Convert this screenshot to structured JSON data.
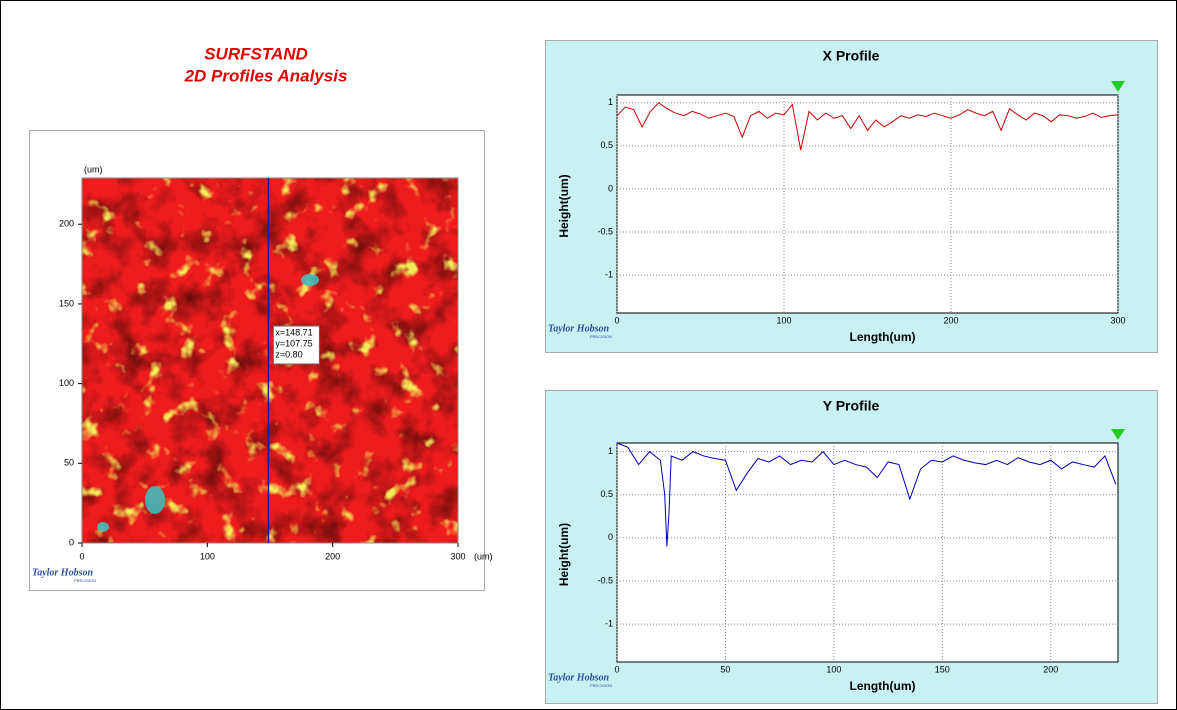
{
  "header": {
    "title": "SURFSTAND",
    "subtitle": "2D Profiles Analysis"
  },
  "chart_data": [
    {
      "type": "map",
      "y_unit": "(um)",
      "x_unit": "(um)",
      "xlim": [
        0,
        300
      ],
      "ylim": [
        0,
        229
      ],
      "xticks": [
        0,
        100,
        200,
        300
      ],
      "yticks": [
        0,
        50,
        100,
        150,
        200
      ],
      "cursor_x": 148.71,
      "cursor_label": [
        "x=148.71",
        "y=107.75",
        "z=0.80"
      ],
      "logo": "Taylor Hobson",
      "logo_sub": "PRECISION",
      "color": "#ee1c1c",
      "cursor_color": "#1a1aa0"
    },
    {
      "type": "line",
      "title": "X Profile",
      "x_label": "Length(um)",
      "y_label": "Height(um)",
      "logo": "Taylor Hobson",
      "logo_sub": "PRECISION",
      "color": "#cc0000",
      "grid": true,
      "xlim": [
        0,
        300
      ],
      "ylim": [
        -1.44,
        1.09
      ],
      "xticks": [
        0,
        100,
        200,
        300
      ],
      "yticks": [
        -1,
        -0.5,
        0,
        0.5,
        1
      ],
      "x": [
        0,
        5,
        10,
        15,
        20,
        25,
        30,
        35,
        40,
        45,
        50,
        55,
        60,
        65,
        70,
        75,
        80,
        85,
        90,
        95,
        100,
        105,
        110,
        115,
        120,
        125,
        130,
        135,
        140,
        145,
        150,
        155,
        160,
        165,
        170,
        175,
        180,
        185,
        190,
        195,
        200,
        205,
        210,
        215,
        220,
        225,
        230,
        235,
        240,
        245,
        250,
        255,
        260,
        265,
        270,
        275,
        280,
        285,
        290,
        295,
        300
      ],
      "values": [
        0.85,
        0.95,
        0.92,
        0.72,
        0.9,
        1.0,
        0.93,
        0.88,
        0.85,
        0.9,
        0.87,
        0.82,
        0.85,
        0.88,
        0.84,
        0.6,
        0.85,
        0.9,
        0.82,
        0.88,
        0.86,
        0.98,
        0.45,
        0.9,
        0.8,
        0.88,
        0.82,
        0.85,
        0.7,
        0.85,
        0.68,
        0.8,
        0.72,
        0.78,
        0.85,
        0.82,
        0.86,
        0.84,
        0.88,
        0.85,
        0.82,
        0.86,
        0.92,
        0.88,
        0.85,
        0.9,
        0.68,
        0.93,
        0.86,
        0.8,
        0.88,
        0.85,
        0.78,
        0.86,
        0.85,
        0.82,
        0.84,
        0.88,
        0.83,
        0.85,
        0.86
      ]
    },
    {
      "type": "line",
      "title": "Y Profile",
      "x_label": "Length(um)",
      "y_label": "Height(um)",
      "logo": "Taylor Hobson",
      "logo_sub": "PRECISION",
      "color": "#0000bb",
      "grid": true,
      "xlim": [
        0,
        231
      ],
      "ylim": [
        -1.44,
        1.1
      ],
      "xticks": [
        0,
        50,
        100,
        150,
        200
      ],
      "yticks": [
        -1,
        -0.5,
        0,
        0.5,
        1
      ],
      "x": [
        0,
        5,
        10,
        15,
        20,
        22,
        23,
        24,
        25,
        30,
        35,
        40,
        45,
        50,
        55,
        60,
        65,
        70,
        75,
        80,
        85,
        90,
        95,
        100,
        105,
        110,
        115,
        120,
        125,
        130,
        135,
        140,
        145,
        150,
        155,
        160,
        165,
        170,
        175,
        180,
        185,
        190,
        195,
        200,
        205,
        210,
        215,
        220,
        225,
        230
      ],
      "values": [
        1.1,
        1.05,
        0.85,
        1.0,
        0.9,
        0.5,
        -0.1,
        0.3,
        0.95,
        0.9,
        1.0,
        0.95,
        0.92,
        0.9,
        0.55,
        0.75,
        0.92,
        0.88,
        0.95,
        0.85,
        0.9,
        0.88,
        1.0,
        0.85,
        0.9,
        0.85,
        0.82,
        0.7,
        0.88,
        0.85,
        0.45,
        0.8,
        0.9,
        0.88,
        0.95,
        0.9,
        0.87,
        0.85,
        0.9,
        0.85,
        0.93,
        0.88,
        0.85,
        0.9,
        0.8,
        0.88,
        0.85,
        0.82,
        0.95,
        0.62
      ]
    }
  ]
}
